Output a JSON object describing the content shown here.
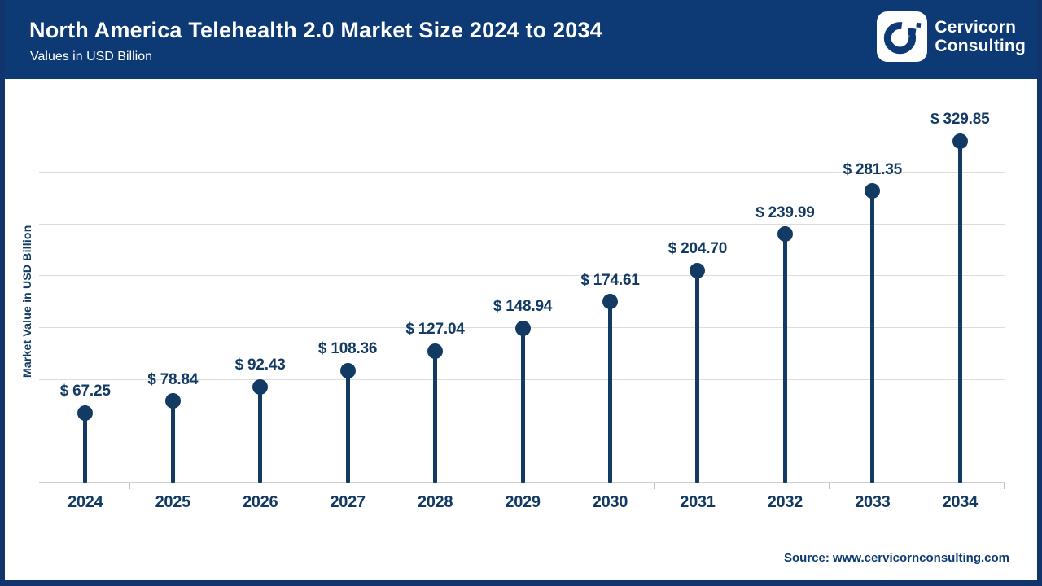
{
  "header": {
    "title": "North America Telehealth 2.0 Market Size 2024 to 2034",
    "subtitle": "Values in USD Billion",
    "brand_line1": "Cervicorn",
    "brand_line2": "Consulting"
  },
  "footer": {
    "source": "Source: www.cervicornconsulting.com"
  },
  "colors": {
    "header_bg": "#0D3A74",
    "chart_navy": "#123A63",
    "frame_border": "#10346B",
    "gridline": "#DCDCDC",
    "axis_line": "#CFCFCF",
    "text_white": "#FFFFFF"
  },
  "chart_data": {
    "type": "bar",
    "variant": "lollipop",
    "title": "North America Telehealth 2.0 Market Size 2024 to 2034",
    "subtitle": "Values in USD Billion",
    "xlabel": "",
    "ylabel": "Market Value in USD Billion",
    "categories": [
      "2024",
      "2025",
      "2026",
      "2027",
      "2028",
      "2029",
      "2030",
      "2031",
      "2032",
      "2033",
      "2034"
    ],
    "values": [
      67.25,
      78.84,
      92.43,
      108.36,
      127.04,
      148.94,
      174.61,
      204.7,
      239.99,
      281.35,
      329.85
    ],
    "labels": [
      "$ 67.25",
      "$ 78.84",
      "$ 92.43",
      "$ 108.36",
      "$ 127.04",
      "$ 148.94",
      "$ 174.61",
      "$ 204.70",
      "$ 239.99",
      "$ 281.35",
      "$ 329.85"
    ],
    "ylim": [
      0,
      350
    ],
    "gridline_step": 50,
    "grid": true,
    "legend_position": "none",
    "marker_color": "#123A63"
  }
}
